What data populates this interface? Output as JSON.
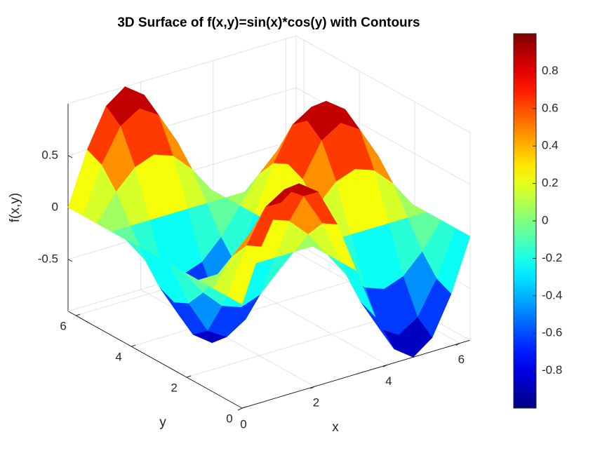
{
  "chart_data": {
    "type": "surface",
    "title": "3D Surface of f(x,y)=sin(x)*cos(y) with Contours",
    "xlabel": "x",
    "ylabel": "y",
    "zlabel": "f(x,y)",
    "colormap": "jet",
    "x": [
      0,
      0.524,
      1.047,
      1.571,
      2.094,
      2.618,
      3.142,
      3.665,
      4.189,
      4.712,
      5.236,
      5.76,
      6.283
    ],
    "y": [
      0,
      0.524,
      1.047,
      1.571,
      2.094,
      2.618,
      3.142,
      3.665,
      4.189,
      4.712,
      5.236,
      5.76,
      6.283
    ],
    "z": [
      [
        0,
        0.5,
        0.866,
        1,
        0.866,
        0.5,
        0,
        -0.5,
        -0.866,
        -1,
        -0.866,
        -0.5,
        0
      ],
      [
        0,
        0.433,
        0.75,
        0.866,
        0.75,
        0.433,
        0,
        -0.433,
        -0.75,
        -0.866,
        -0.75,
        -0.433,
        0
      ],
      [
        0,
        0.25,
        0.433,
        0.5,
        0.433,
        0.25,
        0,
        -0.25,
        -0.433,
        -0.5,
        -0.433,
        -0.25,
        0
      ],
      [
        0,
        0,
        0,
        0,
        0,
        0,
        0,
        0,
        0,
        0,
        0,
        0,
        0
      ],
      [
        0,
        -0.25,
        -0.433,
        -0.5,
        -0.433,
        -0.25,
        0,
        0.25,
        0.433,
        0.5,
        0.433,
        0.25,
        0
      ],
      [
        0,
        -0.433,
        -0.75,
        -0.866,
        -0.75,
        -0.433,
        0,
        0.433,
        0.75,
        0.866,
        0.75,
        0.433,
        0
      ],
      [
        0,
        -0.5,
        -0.866,
        -1,
        -0.866,
        -0.5,
        0,
        0.5,
        0.866,
        1,
        0.866,
        0.5,
        0
      ],
      [
        0,
        -0.433,
        -0.75,
        -0.866,
        -0.75,
        -0.433,
        0,
        0.433,
        0.75,
        0.866,
        0.75,
        0.433,
        0
      ],
      [
        0,
        -0.25,
        -0.433,
        -0.5,
        -0.433,
        -0.25,
        0,
        0.25,
        0.433,
        0.5,
        0.433,
        0.25,
        0
      ],
      [
        0,
        0,
        0,
        0,
        0,
        0,
        0,
        0,
        0,
        0,
        0,
        0,
        0
      ],
      [
        0,
        0.25,
        0.433,
        0.5,
        0.433,
        0.25,
        0,
        -0.25,
        -0.433,
        -0.5,
        -0.433,
        -0.25,
        0
      ],
      [
        0,
        0.433,
        0.75,
        0.866,
        0.75,
        0.433,
        0,
        -0.433,
        -0.75,
        -0.866,
        -0.75,
        -0.433,
        0
      ],
      [
        0,
        0.5,
        0.866,
        1,
        0.866,
        0.5,
        0,
        -0.5,
        -0.866,
        -1,
        -0.866,
        -0.5,
        0
      ]
    ],
    "xlim": [
      0,
      6.283
    ],
    "ylim": [
      0,
      6.283
    ],
    "zlim": [
      -1,
      1
    ],
    "xticks": [
      0,
      2,
      4,
      6
    ],
    "yticks": [
      0,
      2,
      4,
      6
    ],
    "zticks": [
      -0.5,
      0,
      0.5
    ],
    "clim": [
      -1,
      1
    ],
    "cticks": [
      -0.8,
      -0.6,
      -0.4,
      -0.2,
      0,
      0.2,
      0.4,
      0.6,
      0.8
    ],
    "grid": true
  }
}
